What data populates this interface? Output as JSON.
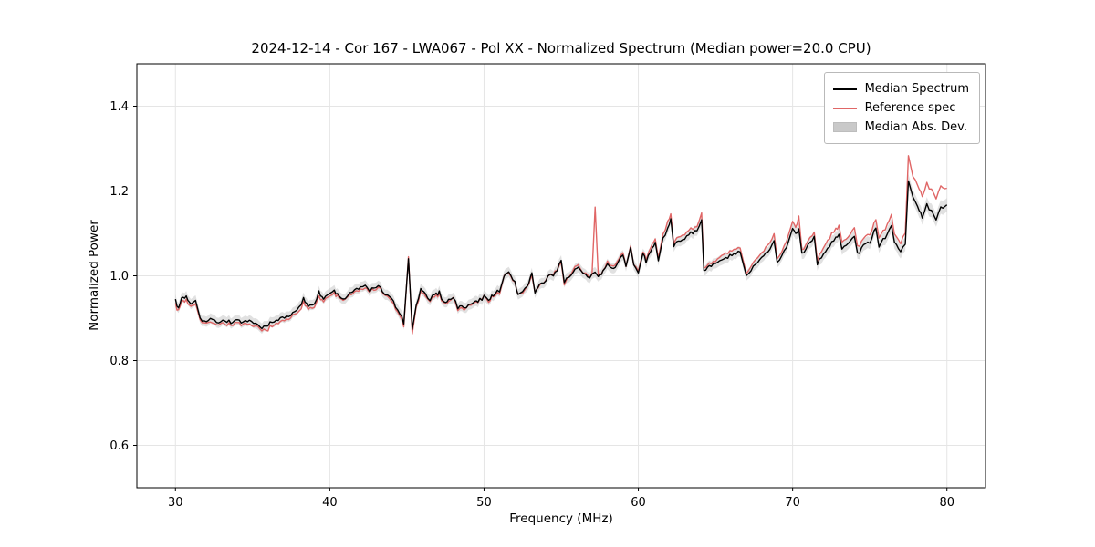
{
  "chart_data": {
    "type": "line",
    "title": "2024-12-14 - Cor 167 - LWA067 - Pol XX - Normalized Spectrum (Median power=20.0 CPU)",
    "xlabel": "Frequency (MHz)",
    "ylabel": "Normalized Power",
    "xlim": [
      27.5,
      82.5
    ],
    "ylim": [
      0.5,
      1.5
    ],
    "xticks": [
      30,
      40,
      50,
      60,
      70,
      80
    ],
    "yticks": [
      0.6,
      0.8,
      1.0,
      1.2,
      1.4
    ],
    "grid": true,
    "legend_position": "upper right",
    "noise_amplitude": 0.0045,
    "series": [
      {
        "name": "Median Spectrum",
        "style": "line",
        "color": "#000000"
      },
      {
        "name": "Reference spec",
        "style": "line",
        "color": "#e06666"
      },
      {
        "name": "Median Abs. Dev.",
        "style": "band",
        "color": "#c9c9c9"
      }
    ],
    "anchors_format": [
      "freq_mhz",
      "median_power",
      "reference_power",
      "median_abs_dev"
    ],
    "anchors": [
      [
        30.0,
        0.945,
        0.935,
        0.012
      ],
      [
        30.2,
        0.92,
        0.915,
        0.012
      ],
      [
        30.4,
        0.948,
        0.94,
        0.012
      ],
      [
        30.7,
        0.95,
        0.942,
        0.012
      ],
      [
        31.0,
        0.935,
        0.928,
        0.012
      ],
      [
        31.3,
        0.945,
        0.938,
        0.012
      ],
      [
        31.6,
        0.9,
        0.895,
        0.012
      ],
      [
        32.0,
        0.89,
        0.885,
        0.012
      ],
      [
        32.4,
        0.9,
        0.892,
        0.012
      ],
      [
        32.8,
        0.89,
        0.885,
        0.012
      ],
      [
        33.2,
        0.895,
        0.888,
        0.012
      ],
      [
        33.6,
        0.89,
        0.885,
        0.012
      ],
      [
        34.0,
        0.896,
        0.888,
        0.012
      ],
      [
        34.4,
        0.89,
        0.884,
        0.012
      ],
      [
        34.8,
        0.891,
        0.882,
        0.012
      ],
      [
        35.2,
        0.886,
        0.88,
        0.012
      ],
      [
        35.6,
        0.876,
        0.87,
        0.012
      ],
      [
        36.0,
        0.886,
        0.876,
        0.012
      ],
      [
        36.4,
        0.89,
        0.882,
        0.012
      ],
      [
        36.8,
        0.9,
        0.89,
        0.012
      ],
      [
        37.2,
        0.905,
        0.898,
        0.012
      ],
      [
        37.6,
        0.91,
        0.904,
        0.012
      ],
      [
        38.0,
        0.922,
        0.912,
        0.012
      ],
      [
        38.3,
        0.946,
        0.936,
        0.012
      ],
      [
        38.6,
        0.93,
        0.924,
        0.012
      ],
      [
        39.0,
        0.936,
        0.93,
        0.012
      ],
      [
        39.3,
        0.96,
        0.95,
        0.012
      ],
      [
        39.6,
        0.946,
        0.94,
        0.012
      ],
      [
        40.0,
        0.956,
        0.95,
        0.012
      ],
      [
        40.3,
        0.966,
        0.96,
        0.012
      ],
      [
        40.6,
        0.95,
        0.946,
        0.012
      ],
      [
        41.0,
        0.946,
        0.944,
        0.012
      ],
      [
        41.3,
        0.96,
        0.955,
        0.012
      ],
      [
        41.6,
        0.966,
        0.96,
        0.012
      ],
      [
        42.0,
        0.97,
        0.965,
        0.012
      ],
      [
        42.3,
        0.976,
        0.97,
        0.012
      ],
      [
        42.6,
        0.966,
        0.964,
        0.012
      ],
      [
        43.0,
        0.976,
        0.97,
        0.012
      ],
      [
        43.3,
        0.97,
        0.966,
        0.012
      ],
      [
        43.6,
        0.956,
        0.954,
        0.012
      ],
      [
        44.0,
        0.946,
        0.94,
        0.012
      ],
      [
        44.4,
        0.92,
        0.915,
        0.013
      ],
      [
        44.8,
        0.89,
        0.884,
        0.014
      ],
      [
        45.1,
        1.04,
        1.045,
        0.012
      ],
      [
        45.35,
        0.87,
        0.858,
        0.012
      ],
      [
        45.6,
        0.93,
        0.925,
        0.012
      ],
      [
        45.9,
        0.966,
        0.96,
        0.012
      ],
      [
        46.2,
        0.955,
        0.95,
        0.012
      ],
      [
        46.5,
        0.945,
        0.944,
        0.012
      ],
      [
        46.8,
        0.955,
        0.95,
        0.012
      ],
      [
        47.1,
        0.96,
        0.956,
        0.012
      ],
      [
        47.4,
        0.936,
        0.934,
        0.012
      ],
      [
        47.7,
        0.945,
        0.94,
        0.012
      ],
      [
        48.0,
        0.95,
        0.95,
        0.012
      ],
      [
        48.3,
        0.925,
        0.92,
        0.012
      ],
      [
        48.7,
        0.926,
        0.922,
        0.012
      ],
      [
        49.0,
        0.93,
        0.93,
        0.012
      ],
      [
        49.3,
        0.936,
        0.934,
        0.012
      ],
      [
        49.6,
        0.94,
        0.94,
        0.012
      ],
      [
        50.0,
        0.95,
        0.95,
        0.012
      ],
      [
        50.3,
        0.945,
        0.94,
        0.012
      ],
      [
        50.6,
        0.956,
        0.954,
        0.012
      ],
      [
        51.0,
        0.965,
        0.96,
        0.012
      ],
      [
        51.3,
        1.0,
        1.0,
        0.012
      ],
      [
        51.6,
        1.006,
        1.002,
        0.012
      ],
      [
        52.0,
        0.985,
        0.985,
        0.012
      ],
      [
        52.2,
        0.955,
        0.955,
        0.012
      ],
      [
        52.5,
        0.965,
        0.96,
        0.012
      ],
      [
        52.8,
        0.976,
        0.975,
        0.012
      ],
      [
        53.1,
        1.006,
        1.0,
        0.012
      ],
      [
        53.3,
        0.96,
        0.96,
        0.012
      ],
      [
        53.6,
        0.976,
        0.975,
        0.012
      ],
      [
        54.0,
        0.99,
        0.99,
        0.012
      ],
      [
        54.3,
        1.0,
        1.0,
        0.012
      ],
      [
        54.6,
        1.006,
        1.01,
        0.012
      ],
      [
        55.0,
        1.036,
        1.03,
        0.012
      ],
      [
        55.2,
        0.986,
        0.98,
        0.012
      ],
      [
        55.5,
        1.0,
        1.0,
        0.012
      ],
      [
        55.8,
        1.01,
        1.015,
        0.012
      ],
      [
        56.1,
        1.02,
        1.025,
        0.012
      ],
      [
        56.4,
        1.006,
        1.005,
        0.012
      ],
      [
        56.7,
        0.996,
        1.0,
        0.012
      ],
      [
        57.0,
        1.0,
        1.0,
        0.012
      ],
      [
        57.2,
        1.005,
        1.16,
        0.012
      ],
      [
        57.4,
        0.996,
        1.0,
        0.012
      ],
      [
        57.7,
        1.01,
        1.01,
        0.012
      ],
      [
        58.0,
        1.03,
        1.035,
        0.012
      ],
      [
        58.3,
        1.02,
        1.025,
        0.012
      ],
      [
        58.6,
        1.026,
        1.03,
        0.012
      ],
      [
        59.0,
        1.05,
        1.055,
        0.012
      ],
      [
        59.2,
        1.02,
        1.02,
        0.012
      ],
      [
        59.5,
        1.066,
        1.07,
        0.012
      ],
      [
        59.7,
        1.03,
        1.03,
        0.012
      ],
      [
        60.0,
        1.01,
        1.015,
        0.012
      ],
      [
        60.3,
        1.056,
        1.06,
        0.012
      ],
      [
        60.5,
        1.03,
        1.035,
        0.012
      ],
      [
        60.8,
        1.06,
        1.07,
        0.012
      ],
      [
        61.1,
        1.08,
        1.09,
        0.012
      ],
      [
        61.3,
        1.04,
        1.045,
        0.012
      ],
      [
        61.6,
        1.09,
        1.1,
        0.012
      ],
      [
        61.9,
        1.11,
        1.125,
        0.012
      ],
      [
        62.1,
        1.13,
        1.14,
        0.012
      ],
      [
        62.3,
        1.07,
        1.075,
        0.012
      ],
      [
        62.6,
        1.08,
        1.09,
        0.012
      ],
      [
        63.0,
        1.09,
        1.1,
        0.012
      ],
      [
        63.4,
        1.1,
        1.11,
        0.012
      ],
      [
        63.8,
        1.11,
        1.12,
        0.012
      ],
      [
        64.1,
        1.13,
        1.145,
        0.012
      ],
      [
        64.25,
        1.01,
        1.015,
        0.012
      ],
      [
        64.6,
        1.02,
        1.025,
        0.012
      ],
      [
        65.0,
        1.03,
        1.035,
        0.012
      ],
      [
        65.4,
        1.035,
        1.045,
        0.012
      ],
      [
        65.8,
        1.045,
        1.055,
        0.012
      ],
      [
        66.2,
        1.05,
        1.06,
        0.012
      ],
      [
        66.6,
        1.055,
        1.065,
        0.012
      ],
      [
        67.0,
        1.0,
        1.005,
        0.012
      ],
      [
        67.3,
        1.01,
        1.02,
        0.012
      ],
      [
        67.6,
        1.03,
        1.04,
        0.012
      ],
      [
        68.0,
        1.045,
        1.055,
        0.012
      ],
      [
        68.4,
        1.06,
        1.075,
        0.012
      ],
      [
        68.8,
        1.08,
        1.095,
        0.012
      ],
      [
        69.0,
        1.03,
        1.04,
        0.012
      ],
      [
        69.3,
        1.05,
        1.06,
        0.012
      ],
      [
        69.6,
        1.07,
        1.085,
        0.012
      ],
      [
        70.0,
        1.11,
        1.125,
        0.014
      ],
      [
        70.2,
        1.1,
        1.115,
        0.014
      ],
      [
        70.4,
        1.11,
        1.14,
        0.014
      ],
      [
        70.6,
        1.05,
        1.06,
        0.014
      ],
      [
        71.0,
        1.07,
        1.08,
        0.014
      ],
      [
        71.4,
        1.09,
        1.1,
        0.014
      ],
      [
        71.6,
        1.03,
        1.04,
        0.014
      ],
      [
        72.0,
        1.05,
        1.065,
        0.014
      ],
      [
        72.4,
        1.07,
        1.09,
        0.014
      ],
      [
        72.8,
        1.09,
        1.11,
        0.014
      ],
      [
        73.0,
        1.1,
        1.12,
        0.014
      ],
      [
        73.2,
        1.06,
        1.075,
        0.014
      ],
      [
        73.6,
        1.08,
        1.095,
        0.014
      ],
      [
        74.0,
        1.095,
        1.115,
        0.014
      ],
      [
        74.2,
        1.05,
        1.065,
        0.014
      ],
      [
        74.6,
        1.07,
        1.085,
        0.014
      ],
      [
        75.0,
        1.08,
        1.1,
        0.014
      ],
      [
        75.4,
        1.115,
        1.135,
        0.014
      ],
      [
        75.6,
        1.07,
        1.09,
        0.014
      ],
      [
        76.0,
        1.09,
        1.11,
        0.016
      ],
      [
        76.4,
        1.115,
        1.14,
        0.016
      ],
      [
        76.6,
        1.08,
        1.1,
        0.016
      ],
      [
        77.0,
        1.06,
        1.08,
        0.016
      ],
      [
        77.3,
        1.075,
        1.1,
        0.016
      ],
      [
        77.5,
        1.22,
        1.28,
        0.016
      ],
      [
        77.8,
        1.19,
        1.24,
        0.016
      ],
      [
        78.1,
        1.16,
        1.21,
        0.016
      ],
      [
        78.4,
        1.14,
        1.19,
        0.016
      ],
      [
        78.7,
        1.17,
        1.22,
        0.016
      ],
      [
        79.0,
        1.15,
        1.2,
        0.016
      ],
      [
        79.3,
        1.13,
        1.18,
        0.016
      ],
      [
        79.6,
        1.16,
        1.21,
        0.016
      ],
      [
        80.0,
        1.17,
        1.21,
        0.016
      ]
    ]
  }
}
